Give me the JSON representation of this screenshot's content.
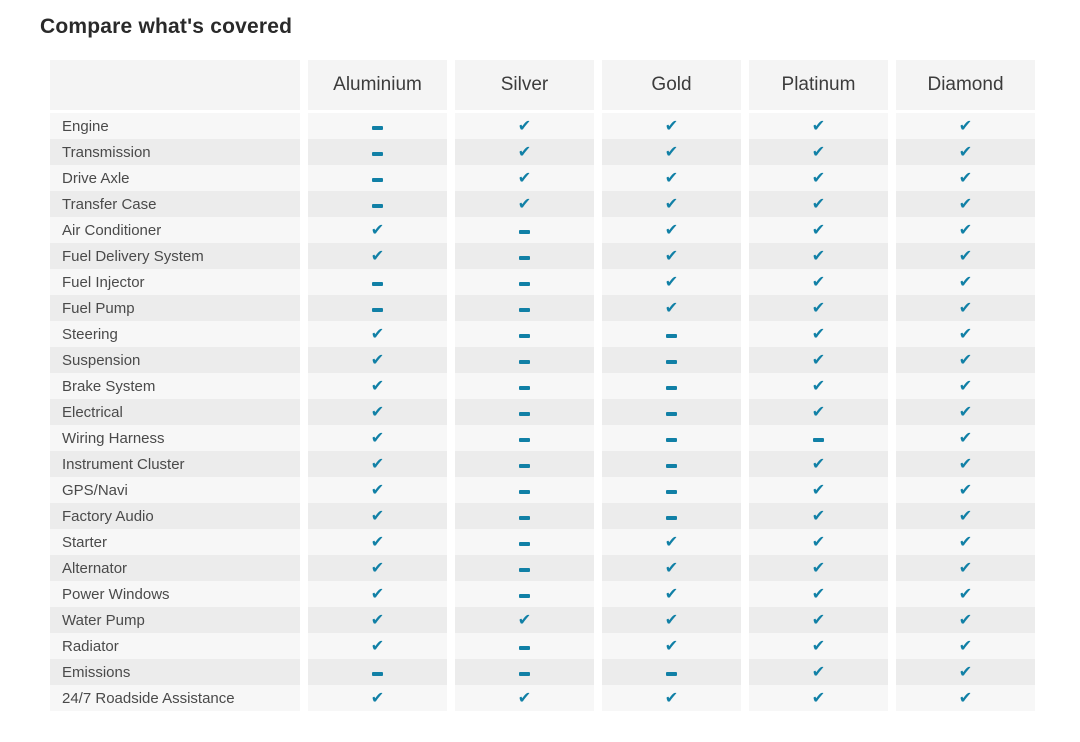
{
  "page": {
    "title": "Compare what's covered"
  },
  "icons": {
    "check_glyph": "✔",
    "check_name": "check-icon",
    "dash_name": "dash-icon"
  },
  "colors": {
    "accent_check": "#1180a6",
    "row_light": "#f7f7f7",
    "row_dark": "#ececec",
    "header_bg": "#f4f4f4"
  },
  "table": {
    "columns": [
      "Aluminium",
      "Silver",
      "Gold",
      "Platinum",
      "Diamond"
    ],
    "rows": [
      {
        "label": "Engine",
        "covered": [
          false,
          true,
          true,
          true,
          true
        ]
      },
      {
        "label": "Transmission",
        "covered": [
          false,
          true,
          true,
          true,
          true
        ]
      },
      {
        "label": "Drive Axle",
        "covered": [
          false,
          true,
          true,
          true,
          true
        ]
      },
      {
        "label": "Transfer Case",
        "covered": [
          false,
          true,
          true,
          true,
          true
        ]
      },
      {
        "label": "Air Conditioner",
        "covered": [
          true,
          false,
          true,
          true,
          true
        ]
      },
      {
        "label": "Fuel Delivery System",
        "covered": [
          true,
          false,
          true,
          true,
          true
        ]
      },
      {
        "label": "Fuel Injector",
        "covered": [
          false,
          false,
          true,
          true,
          true
        ]
      },
      {
        "label": "Fuel Pump",
        "covered": [
          false,
          false,
          true,
          true,
          true
        ]
      },
      {
        "label": "Steering",
        "covered": [
          true,
          false,
          false,
          true,
          true
        ]
      },
      {
        "label": "Suspension",
        "covered": [
          true,
          false,
          false,
          true,
          true
        ]
      },
      {
        "label": "Brake System",
        "covered": [
          true,
          false,
          false,
          true,
          true
        ]
      },
      {
        "label": "Electrical",
        "covered": [
          true,
          false,
          false,
          true,
          true
        ]
      },
      {
        "label": "Wiring Harness",
        "covered": [
          true,
          false,
          false,
          false,
          true
        ]
      },
      {
        "label": "Instrument Cluster",
        "covered": [
          true,
          false,
          false,
          true,
          true
        ]
      },
      {
        "label": "GPS/Navi",
        "covered": [
          true,
          false,
          false,
          true,
          true
        ]
      },
      {
        "label": "Factory Audio",
        "covered": [
          true,
          false,
          false,
          true,
          true
        ]
      },
      {
        "label": "Starter",
        "covered": [
          true,
          false,
          true,
          true,
          true
        ]
      },
      {
        "label": "Alternator",
        "covered": [
          true,
          false,
          true,
          true,
          true
        ]
      },
      {
        "label": "Power Windows",
        "covered": [
          true,
          false,
          true,
          true,
          true
        ]
      },
      {
        "label": "Water Pump",
        "covered": [
          true,
          true,
          true,
          true,
          true
        ]
      },
      {
        "label": "Radiator",
        "covered": [
          true,
          false,
          true,
          true,
          true
        ]
      },
      {
        "label": "Emissions",
        "covered": [
          false,
          false,
          false,
          true,
          true
        ]
      },
      {
        "label": "24/7 Roadside Assistance",
        "covered": [
          true,
          true,
          true,
          true,
          true
        ]
      }
    ]
  }
}
